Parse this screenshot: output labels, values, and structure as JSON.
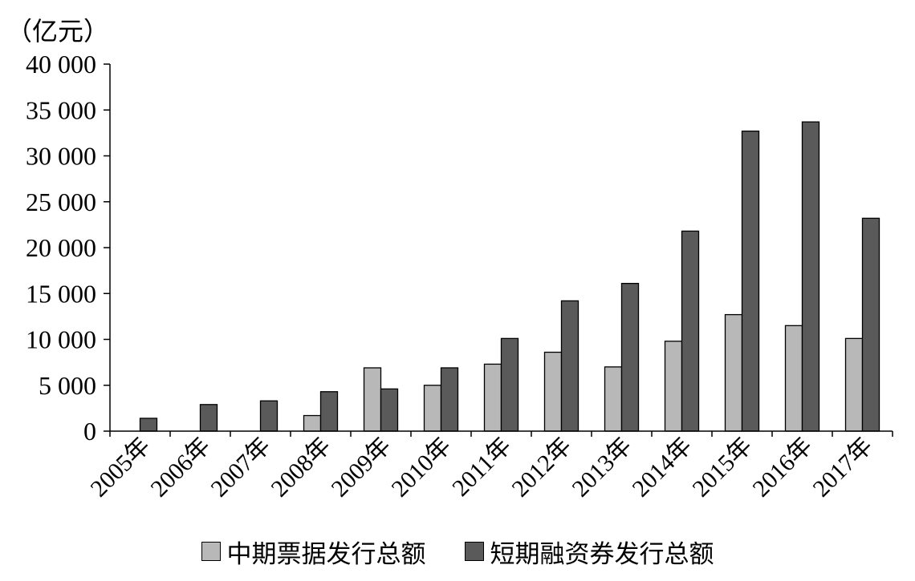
{
  "chart_data": {
    "type": "bar",
    "unit_label": "（亿元）",
    "categories": [
      "2005年",
      "2006年",
      "2007年",
      "2008年",
      "2009年",
      "2010年",
      "2011年",
      "2012年",
      "2013年",
      "2014年",
      "2015年",
      "2016年",
      "2017年"
    ],
    "series": [
      {
        "name": "中期票据发行总额",
        "color": "#b8b8b8",
        "values": [
          0,
          0,
          0,
          1700,
          6900,
          5000,
          7300,
          8600,
          7000,
          9800,
          12700,
          11500,
          10100
        ]
      },
      {
        "name": "短期融资券发行总额",
        "color": "#5a5a5a",
        "values": [
          1400,
          2900,
          3300,
          4300,
          4600,
          6900,
          10100,
          14200,
          16100,
          21800,
          32700,
          33700,
          23200
        ]
      }
    ],
    "ylim": [
      0,
      40000
    ],
    "yticks": [
      0,
      5000,
      10000,
      15000,
      20000,
      25000,
      30000,
      35000,
      40000
    ],
    "ytick_labels": [
      "0",
      "5 000",
      "10 000",
      "15 000",
      "20 000",
      "25 000",
      "30 000",
      "35 000",
      "40 000"
    ],
    "grid": false,
    "legend_position": "bottom"
  }
}
